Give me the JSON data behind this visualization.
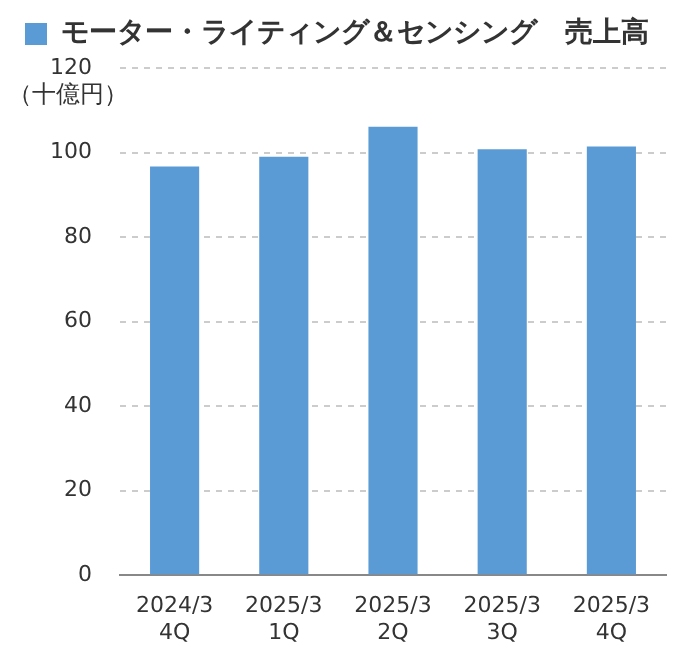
{
  "chart_data": {
    "type": "bar",
    "ylabel": "（十億円）",
    "categories": [
      "2024/3\n4Q",
      "2025/3\n1Q",
      "2025/3\n2Q",
      "2025/3\n3Q",
      "2025/3\n4Q"
    ],
    "series": [
      {
        "name": "モーター・ライティング＆センシング　売上高",
        "color": "#5b9bd5",
        "values": [
          96.7,
          99.0,
          106.1,
          100.8,
          101.4
        ]
      }
    ],
    "ylim": [
      0,
      120
    ],
    "yticks": [
      0,
      20,
      40,
      60,
      80,
      100,
      120
    ],
    "grid": "y",
    "legend": "top"
  }
}
